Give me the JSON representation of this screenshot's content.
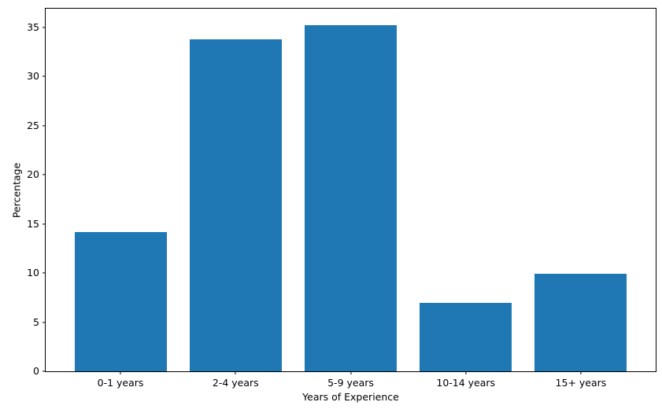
{
  "chart_data": {
    "type": "bar",
    "categories": [
      "0-1 years",
      "2-4 years",
      "5-9 years",
      "10-14 years",
      "15+ years"
    ],
    "values": [
      14.2,
      33.8,
      35.2,
      7.0,
      9.9
    ],
    "title": "",
    "xlabel": "Years of Experience",
    "ylabel": "Percentage",
    "ylim": [
      0,
      36.9
    ],
    "yticks": [
      0,
      5,
      10,
      15,
      20,
      25,
      30,
      35
    ],
    "xlim": [
      -0.65,
      4.65
    ],
    "bar_width_fraction": 0.8,
    "bar_color": "#1f77b4",
    "spine_color": "#000000",
    "background_color": "#ffffff",
    "grid": false,
    "legend": null
  }
}
